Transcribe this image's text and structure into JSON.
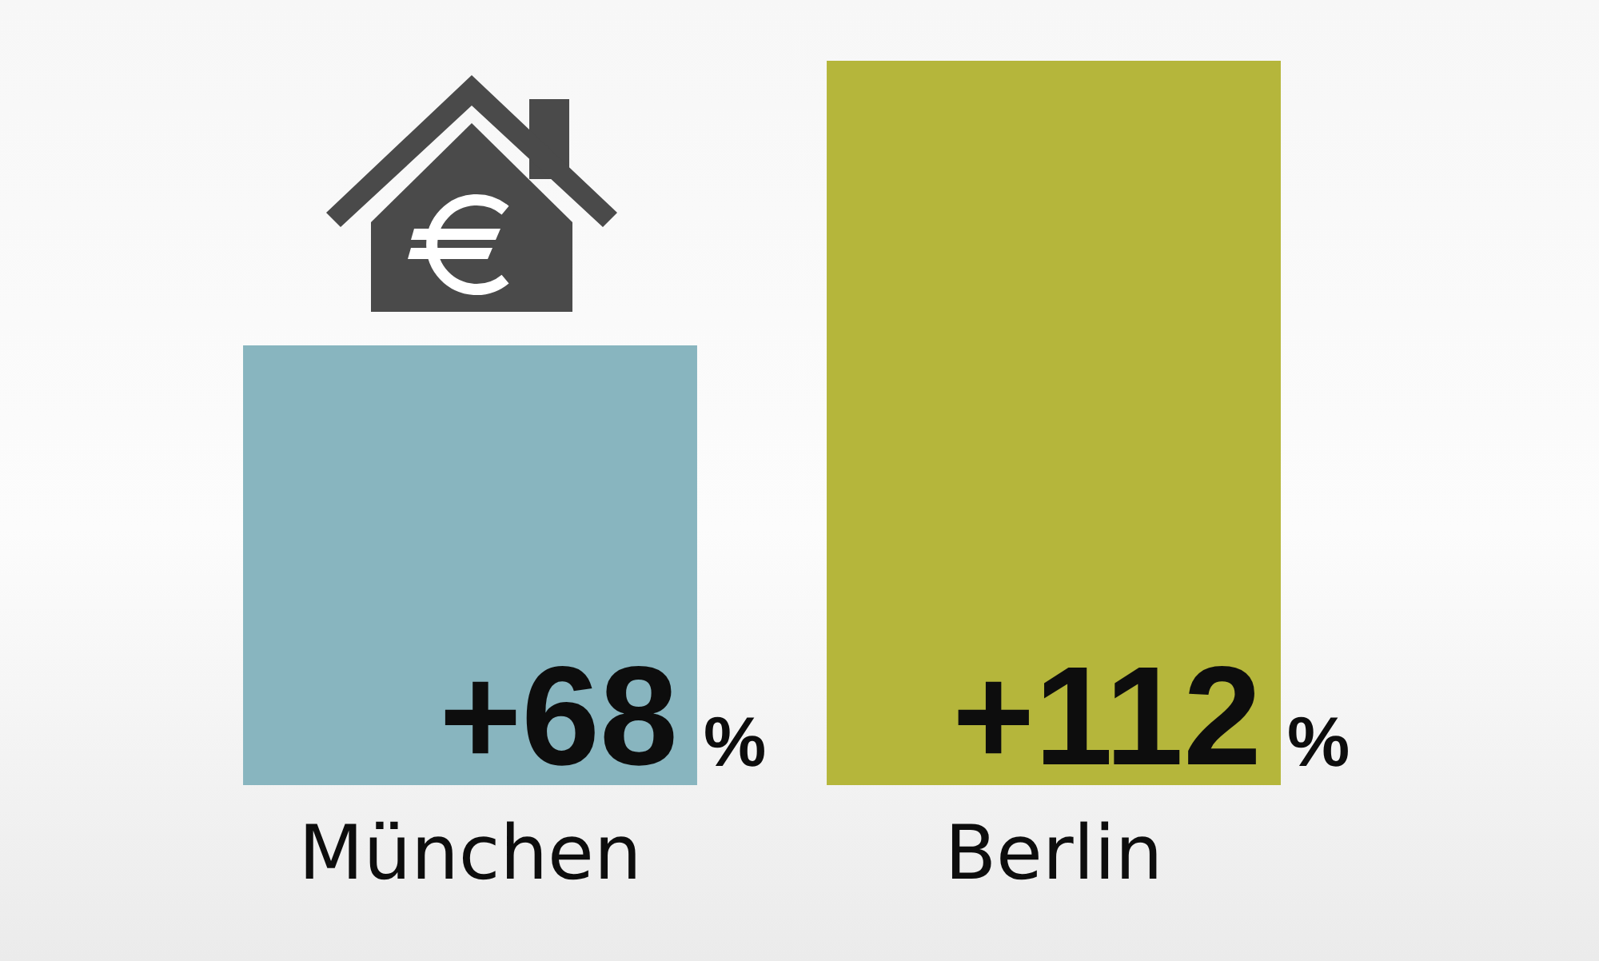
{
  "chart_data": {
    "type": "bar",
    "categories": [
      "München",
      "Berlin"
    ],
    "values": [
      68,
      112
    ],
    "colors": [
      "#88b5bf",
      "#b5b63b"
    ],
    "value_labels": [
      "+68 %",
      "+112 %"
    ],
    "legend": false
  }
}
